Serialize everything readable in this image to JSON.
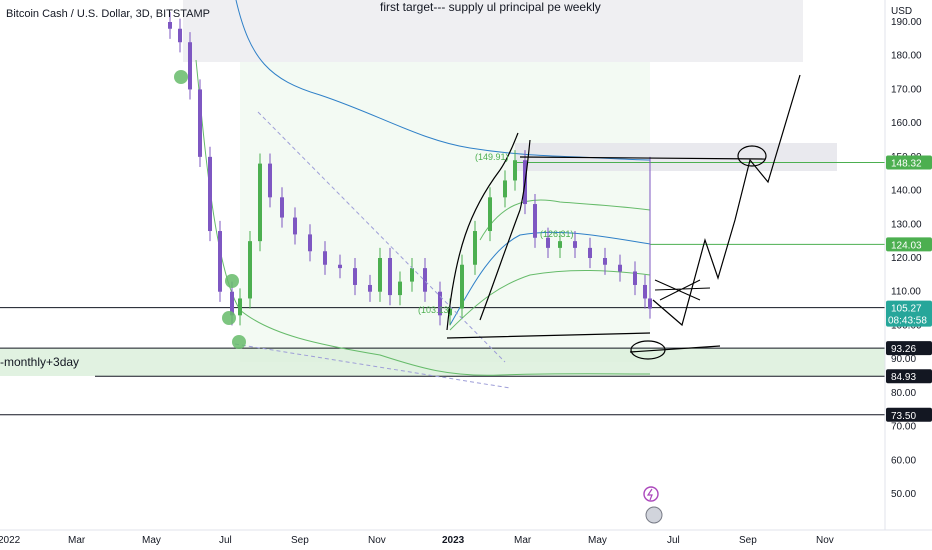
{
  "header": {
    "symbol_title": "Bitcoin Cash / U.S. Dollar, 3D, BITSTAMP",
    "currency": "USD",
    "annotation": "first target--- supply ul principal pe weekly",
    "zone_label": "-monthly+3day"
  },
  "chart_data": {
    "type": "candlestick",
    "title": "Bitcoin Cash / U.S. Dollar, 3D, BITSTAMP",
    "ylabel": "USD",
    "ylim": [
      40,
      196
    ],
    "y_ticks": [
      50,
      60,
      70,
      80,
      90,
      100,
      110,
      120,
      130,
      140,
      150,
      160,
      170,
      180,
      190
    ],
    "x_ticks": [
      "2022",
      "Mar",
      "May",
      "Jul",
      "Sep",
      "Nov",
      "2023",
      "Mar",
      "May",
      "Jul",
      "Sep",
      "Nov"
    ],
    "price_badges": [
      {
        "value": "148.32",
        "color": "#4caf50"
      },
      {
        "value": "124.03",
        "color": "#4caf50"
      },
      {
        "value": "105.27",
        "sub": "08:43:58",
        "color": "#26a69a"
      },
      {
        "value": "93.26",
        "color": "#131722"
      },
      {
        "value": "84.93",
        "color": "#131722"
      },
      {
        "value": "73.50",
        "color": "#131722"
      }
    ],
    "horizontal_levels": [
      148.32,
      124.03,
      105.27,
      93.26,
      84.93,
      73.5
    ],
    "chart_labels": [
      "(149.91)",
      "(126.31)",
      "(103.13)"
    ],
    "colors": {
      "up": "#4caf50",
      "down": "#7e57c2",
      "ma_blue": "#2f80c8",
      "ma_green": "#66bb6a"
    }
  }
}
